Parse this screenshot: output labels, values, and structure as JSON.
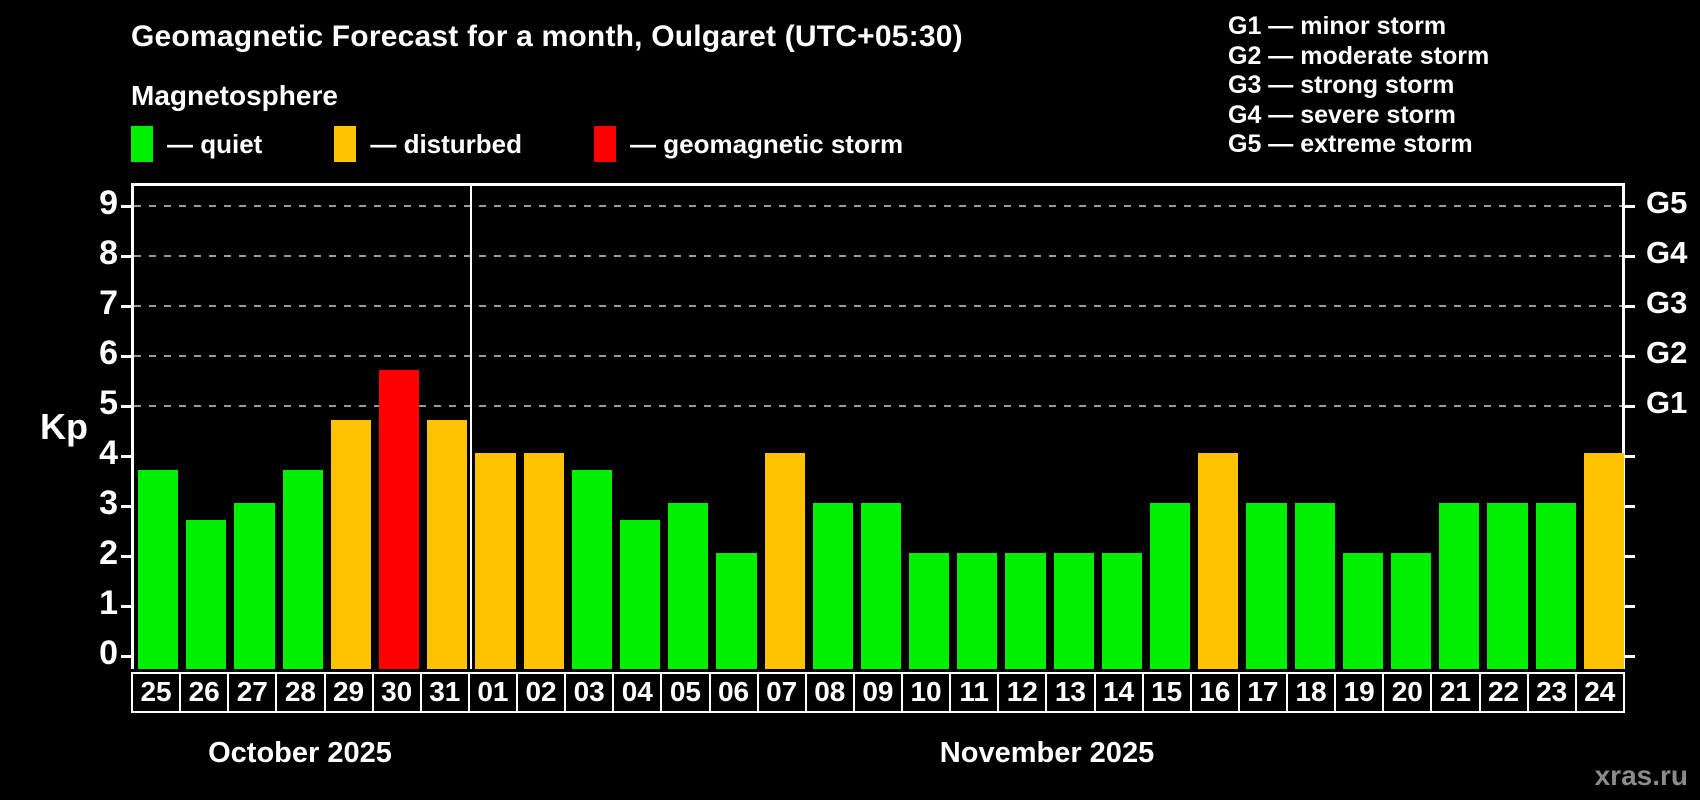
{
  "title": "Geomagnetic Forecast for a month, Oulgaret (UTC+05:30)",
  "subtitle": "Magnetosphere",
  "legend": {
    "items": [
      {
        "key": "quiet",
        "label": "— quiet",
        "color": "#00ee00"
      },
      {
        "key": "disturbed",
        "label": "— disturbed",
        "color": "#ffc300"
      },
      {
        "key": "storm",
        "label": "— geomagnetic storm",
        "color": "#ff0000"
      }
    ]
  },
  "storm_scale_legend": {
    "lines": [
      "G1 — minor storm",
      "G2 — moderate storm",
      "G3 — strong storm",
      "G4 — severe storm",
      "G5 — extreme storm"
    ]
  },
  "watermark": "xras.ru",
  "colors": {
    "quiet": "#00ee00",
    "disturbed": "#ffc300",
    "storm": "#ff0000",
    "grid": "#9a9a9a",
    "axis": "#ffffff",
    "background": "#000000",
    "watermark": "#8b8b8b"
  },
  "chart_data": {
    "type": "bar",
    "title": "Geomagnetic Forecast for a month, Oulgaret (UTC+05:30)",
    "ylabel": "Kp",
    "ylim": [
      0,
      9.4
    ],
    "yticks": [
      0,
      1,
      2,
      3,
      4,
      5,
      6,
      7,
      8,
      9
    ],
    "grid": "dashed horizontal at Kp 5-9",
    "grid_levels": [
      5,
      6,
      7,
      8,
      9
    ],
    "right_axis_labels": [
      {
        "label": "G1",
        "kp": 5
      },
      {
        "label": "G2",
        "kp": 6
      },
      {
        "label": "G3",
        "kp": 7
      },
      {
        "label": "G4",
        "kp": 8
      },
      {
        "label": "G5",
        "kp": 9
      }
    ],
    "categories": [
      "25",
      "26",
      "27",
      "28",
      "29",
      "30",
      "31",
      "01",
      "02",
      "03",
      "04",
      "05",
      "06",
      "07",
      "08",
      "09",
      "10",
      "11",
      "12",
      "13",
      "14",
      "15",
      "16",
      "17",
      "18",
      "19",
      "20",
      "21",
      "22",
      "23",
      "24"
    ],
    "series": [
      {
        "name": "Kp forecast",
        "values": [
          3.67,
          2.67,
          3,
          3.67,
          4.67,
          5.67,
          4.67,
          4,
          4,
          3.67,
          2.67,
          3,
          2,
          4,
          3,
          3,
          2,
          2,
          2,
          2,
          2,
          3,
          4,
          3,
          3,
          2,
          2,
          3,
          3,
          3,
          4
        ]
      }
    ],
    "statuses": [
      "quiet",
      "quiet",
      "quiet",
      "quiet",
      "disturbed",
      "storm",
      "disturbed",
      "disturbed",
      "disturbed",
      "quiet",
      "quiet",
      "quiet",
      "quiet",
      "disturbed",
      "quiet",
      "quiet",
      "quiet",
      "quiet",
      "quiet",
      "quiet",
      "quiet",
      "quiet",
      "disturbed",
      "quiet",
      "quiet",
      "quiet",
      "quiet",
      "quiet",
      "quiet",
      "quiet",
      "disturbed"
    ],
    "months": [
      {
        "label": "October 2025",
        "days": 7
      },
      {
        "label": "November 2025",
        "days": 24
      }
    ]
  }
}
